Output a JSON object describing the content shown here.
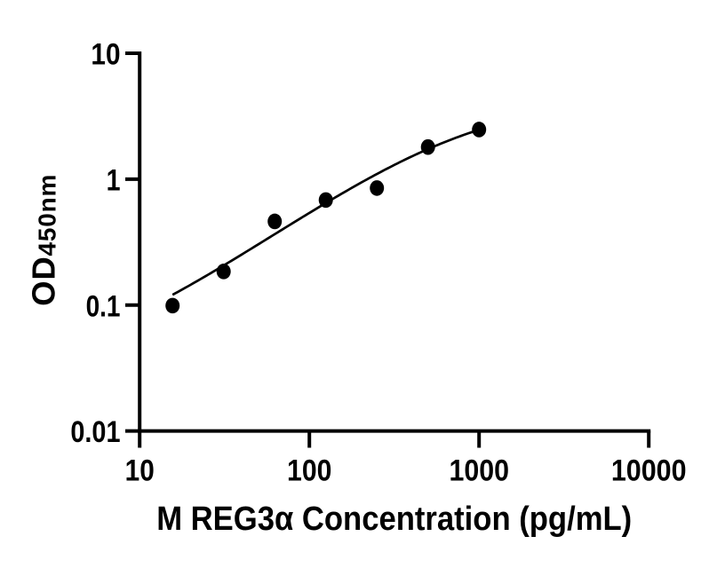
{
  "chart_data": {
    "type": "scatter",
    "title": "",
    "xlabel": "M REG3α Concentration (pg/mL)",
    "ylabel_main": "OD",
    "ylabel_sub": "450nm",
    "xscale": "log",
    "yscale": "log",
    "xlim": [
      10,
      10000
    ],
    "ylim": [
      0.01,
      10
    ],
    "x_ticks": [
      {
        "value": 10,
        "label": "10"
      },
      {
        "value": 100,
        "label": "100"
      },
      {
        "value": 1000,
        "label": "1000"
      },
      {
        "value": 10000,
        "label": "10000"
      }
    ],
    "y_ticks": [
      {
        "value": 0.01,
        "label": "0.01"
      },
      {
        "value": 0.1,
        "label": "0.1"
      },
      {
        "value": 1,
        "label": "1"
      },
      {
        "value": 10,
        "label": "10"
      }
    ],
    "grid": false,
    "legend": false,
    "marker": "filled-circle",
    "points": [
      {
        "x": 15.625,
        "y": 0.099
      },
      {
        "x": 31.25,
        "y": 0.185
      },
      {
        "x": 62.5,
        "y": 0.462
      },
      {
        "x": 125,
        "y": 0.683
      },
      {
        "x": 250,
        "y": 0.85
      },
      {
        "x": 500,
        "y": 1.8
      },
      {
        "x": 1000,
        "y": 2.48
      }
    ],
    "fit_curve": {
      "model": "four-parameter-logistic",
      "bottom": 0.02853,
      "top": 4.41828,
      "ec50": 794.63,
      "hill": 0.97798,
      "x_start": 15.625,
      "x_end": 1000
    },
    "ink_color": "#000000",
    "background_color": "#ffffff"
  }
}
